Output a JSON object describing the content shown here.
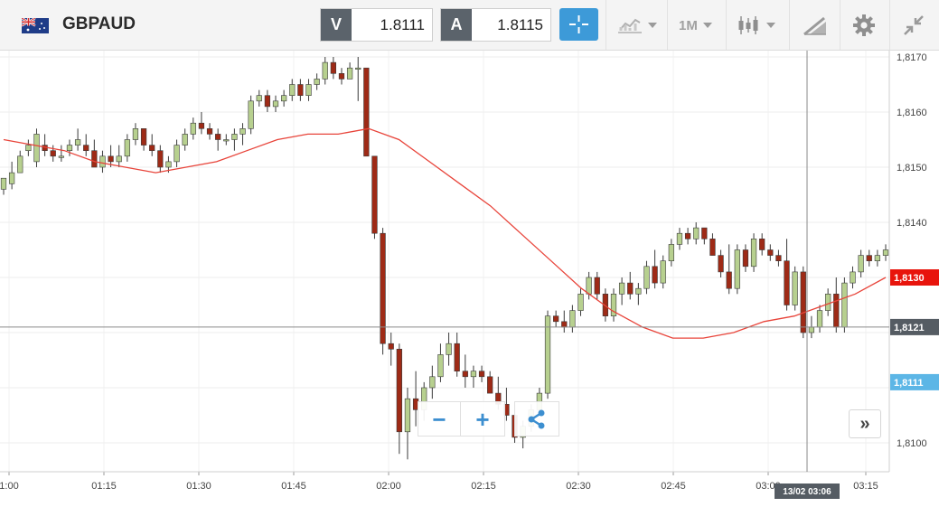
{
  "instrument": {
    "symbol": "GBPAUD"
  },
  "quotes": {
    "bid_label": "V",
    "bid_value": "1.8111",
    "ask_label": "A",
    "ask_value": "1.8115"
  },
  "toolbar": {
    "period": "1M",
    "icons": [
      "crosshair-icon",
      "chart-type-icon",
      "period-dropdown",
      "candlestick-icon",
      "drawing-tools-icon",
      "settings-gear-icon",
      "collapse-icon"
    ]
  },
  "chart_data": {
    "type": "candlestick",
    "y_ticks": [
      "1,8170",
      "1,8160",
      "1,8150",
      "1,8140",
      "1,8130",
      "1,8121",
      "1,8111",
      "1,8100"
    ],
    "x_ticks": [
      "1:00",
      "01:15",
      "01:30",
      "01:45",
      "02:00",
      "02:15",
      "02:30",
      "02:45",
      "03:00",
      "03:15"
    ],
    "ylim": [
      1.8097,
      1.8173
    ],
    "price_labels": {
      "ma_value": "1,8130",
      "crosshair_value": "1,8121",
      "current_price": "1,8111",
      "crosshair_time": "13/02 03:06"
    },
    "colors": {
      "up": "#b7d08f",
      "down": "#9e2a16",
      "ma": "#e8443a",
      "ma_label": "#e8140c",
      "current": "#5cb6e6",
      "crosshair": "#555c63"
    },
    "candles": [
      [
        1.8146,
        1.8148,
        1.8145,
        1.8148
      ],
      [
        1.8147,
        1.8151,
        1.8146,
        1.8149
      ],
      [
        1.8149,
        1.8153,
        1.8149,
        1.8152
      ],
      [
        1.8153,
        1.8155,
        1.8152,
        1.8154
      ],
      [
        1.8151,
        1.8157,
        1.815,
        1.8156
      ],
      [
        1.8154,
        1.8156,
        1.8152,
        1.8153
      ],
      [
        1.8153,
        1.8154,
        1.8151,
        1.8152
      ],
      [
        1.8152,
        1.8154,
        1.8151,
        1.8152
      ],
      [
        1.8153,
        1.8155,
        1.8152,
        1.8154
      ],
      [
        1.8154,
        1.8157,
        1.8153,
        1.8155
      ],
      [
        1.8154,
        1.8156,
        1.8152,
        1.8153
      ],
      [
        1.8153,
        1.8155,
        1.815,
        1.815
      ],
      [
        1.815,
        1.8153,
        1.8149,
        1.8152
      ],
      [
        1.8152,
        1.8154,
        1.815,
        1.8151
      ],
      [
        1.8151,
        1.8154,
        1.815,
        1.8152
      ],
      [
        1.8152,
        1.8156,
        1.8151,
        1.8155
      ],
      [
        1.8155,
        1.8158,
        1.8154,
        1.8157
      ],
      [
        1.8157,
        1.8157,
        1.8153,
        1.8154
      ],
      [
        1.8154,
        1.8156,
        1.8152,
        1.8153
      ],
      [
        1.8153,
        1.8154,
        1.8149,
        1.815
      ],
      [
        1.815,
        1.8152,
        1.8149,
        1.8151
      ],
      [
        1.8151,
        1.8155,
        1.815,
        1.8154
      ],
      [
        1.8154,
        1.8157,
        1.8153,
        1.8156
      ],
      [
        1.8156,
        1.8159,
        1.8155,
        1.8158
      ],
      [
        1.8158,
        1.816,
        1.8156,
        1.8157
      ],
      [
        1.8157,
        1.8158,
        1.8155,
        1.8156
      ],
      [
        1.8156,
        1.8157,
        1.8153,
        1.8155
      ],
      [
        1.8155,
        1.8156,
        1.8154,
        1.8155
      ],
      [
        1.8155,
        1.8157,
        1.8153,
        1.8156
      ],
      [
        1.8156,
        1.8158,
        1.8154,
        1.8157
      ],
      [
        1.8157,
        1.8163,
        1.8156,
        1.8162
      ],
      [
        1.8162,
        1.8164,
        1.8161,
        1.8163
      ],
      [
        1.8163,
        1.8164,
        1.816,
        1.8161
      ],
      [
        1.8161,
        1.8163,
        1.816,
        1.8162
      ],
      [
        1.8162,
        1.8164,
        1.8161,
        1.8163
      ],
      [
        1.8163,
        1.8166,
        1.8162,
        1.8165
      ],
      [
        1.8165,
        1.8166,
        1.8162,
        1.8163
      ],
      [
        1.8163,
        1.8166,
        1.8162,
        1.8165
      ],
      [
        1.8165,
        1.8167,
        1.8164,
        1.8166
      ],
      [
        1.8166,
        1.817,
        1.8165,
        1.8169
      ],
      [
        1.8169,
        1.817,
        1.8166,
        1.8167
      ],
      [
        1.8167,
        1.8168,
        1.8165,
        1.8166
      ],
      [
        1.8166,
        1.8169,
        1.8166,
        1.8168
      ],
      [
        1.8168,
        1.817,
        1.8162,
        1.8168
      ],
      [
        1.8168,
        1.8168,
        1.8152,
        1.8152
      ],
      [
        1.8152,
        1.8152,
        1.8137,
        1.8138
      ],
      [
        1.8138,
        1.8139,
        1.8116,
        1.8118
      ],
      [
        1.8118,
        1.812,
        1.8114,
        1.8117
      ],
      [
        1.8117,
        1.8118,
        1.8098,
        1.8102
      ],
      [
        1.8102,
        1.811,
        1.8097,
        1.8108
      ],
      [
        1.8108,
        1.8113,
        1.8103,
        1.8106
      ],
      [
        1.8106,
        1.8111,
        1.8104,
        1.811
      ],
      [
        1.811,
        1.8114,
        1.8108,
        1.8112
      ],
      [
        1.8112,
        1.8118,
        1.8111,
        1.8116
      ],
      [
        1.8116,
        1.812,
        1.8114,
        1.8118
      ],
      [
        1.8118,
        1.812,
        1.8112,
        1.8113
      ],
      [
        1.8113,
        1.8116,
        1.811,
        1.8112
      ],
      [
        1.8112,
        1.8114,
        1.811,
        1.8113
      ],
      [
        1.8113,
        1.8114,
        1.8111,
        1.8112
      ],
      [
        1.8112,
        1.8113,
        1.8109,
        1.8109
      ],
      [
        1.8109,
        1.8112,
        1.8106,
        1.8107
      ],
      [
        1.8107,
        1.811,
        1.8104,
        1.8105
      ],
      [
        1.8105,
        1.8107,
        1.81,
        1.8101
      ],
      [
        1.8101,
        1.8104,
        1.8099,
        1.8103
      ],
      [
        1.8103,
        1.8107,
        1.8102,
        1.8106
      ],
      [
        1.8106,
        1.811,
        1.8105,
        1.8109
      ],
      [
        1.8109,
        1.8124,
        1.8108,
        1.8123
      ],
      [
        1.8123,
        1.8124,
        1.8121,
        1.8122
      ],
      [
        1.8122,
        1.8124,
        1.812,
        1.8121
      ],
      [
        1.8121,
        1.8125,
        1.812,
        1.8124
      ],
      [
        1.8124,
        1.8128,
        1.8123,
        1.8127
      ],
      [
        1.8127,
        1.8131,
        1.8126,
        1.813
      ],
      [
        1.813,
        1.8131,
        1.8126,
        1.8127
      ],
      [
        1.8127,
        1.8128,
        1.8122,
        1.8123
      ],
      [
        1.8123,
        1.8128,
        1.8122,
        1.8127
      ],
      [
        1.8127,
        1.813,
        1.8125,
        1.8129
      ],
      [
        1.8129,
        1.8131,
        1.8126,
        1.8127
      ],
      [
        1.8127,
        1.8129,
        1.8125,
        1.8128
      ],
      [
        1.8128,
        1.8133,
        1.8127,
        1.8132
      ],
      [
        1.8132,
        1.8135,
        1.8128,
        1.8129
      ],
      [
        1.8129,
        1.8134,
        1.8128,
        1.8133
      ],
      [
        1.8133,
        1.8137,
        1.8132,
        1.8136
      ],
      [
        1.8136,
        1.8139,
        1.8135,
        1.8138
      ],
      [
        1.8138,
        1.8139,
        1.8136,
        1.8137
      ],
      [
        1.8137,
        1.814,
        1.8136,
        1.8139
      ],
      [
        1.8139,
        1.8139,
        1.8136,
        1.8137
      ],
      [
        1.8137,
        1.8138,
        1.8134,
        1.8134
      ],
      [
        1.8134,
        1.8135,
        1.813,
        1.8131
      ],
      [
        1.8131,
        1.8136,
        1.8127,
        1.8128
      ],
      [
        1.8128,
        1.8136,
        1.8127,
        1.8135
      ],
      [
        1.8135,
        1.8136,
        1.8131,
        1.8132
      ],
      [
        1.8132,
        1.8138,
        1.8131,
        1.8137
      ],
      [
        1.8137,
        1.8138,
        1.8134,
        1.8135
      ],
      [
        1.8135,
        1.8136,
        1.8133,
        1.8134
      ],
      [
        1.8134,
        1.8135,
        1.8132,
        1.8133
      ],
      [
        1.8133,
        1.8137,
        1.8124,
        1.8125
      ],
      [
        1.8125,
        1.8132,
        1.8124,
        1.8131
      ],
      [
        1.8131,
        1.8132,
        1.8119,
        1.812
      ],
      [
        1.812,
        1.8123,
        1.8119,
        1.8121
      ],
      [
        1.8121,
        1.8125,
        1.812,
        1.8124
      ],
      [
        1.8124,
        1.8128,
        1.8123,
        1.8127
      ],
      [
        1.8127,
        1.813,
        1.812,
        1.8121
      ],
      [
        1.8121,
        1.813,
        1.812,
        1.8129
      ],
      [
        1.8129,
        1.8132,
        1.8128,
        1.8131
      ],
      [
        1.8131,
        1.8135,
        1.813,
        1.8134
      ],
      [
        1.8134,
        1.8135,
        1.8132,
        1.8133
      ],
      [
        1.8133,
        1.8135,
        1.8132,
        1.8134
      ],
      [
        1.8134,
        1.8136,
        1.8133,
        1.8135
      ]
    ],
    "ma": [
      1.8155,
      1.8154,
      1.8153,
      1.8151,
      1.815,
      1.8149,
      1.815,
      1.8151,
      1.8153,
      1.8155,
      1.8156,
      1.8156,
      1.8157,
      1.8155,
      1.8151,
      1.8147,
      1.8143,
      1.8138,
      1.8133,
      1.8128,
      1.8124,
      1.8121,
      1.8119,
      1.8119,
      1.812,
      1.8122,
      1.8123,
      1.8125,
      1.8127,
      1.813
    ]
  },
  "controls": {
    "zoom_out": "−",
    "zoom_in": "+",
    "scroll_right": "»"
  }
}
